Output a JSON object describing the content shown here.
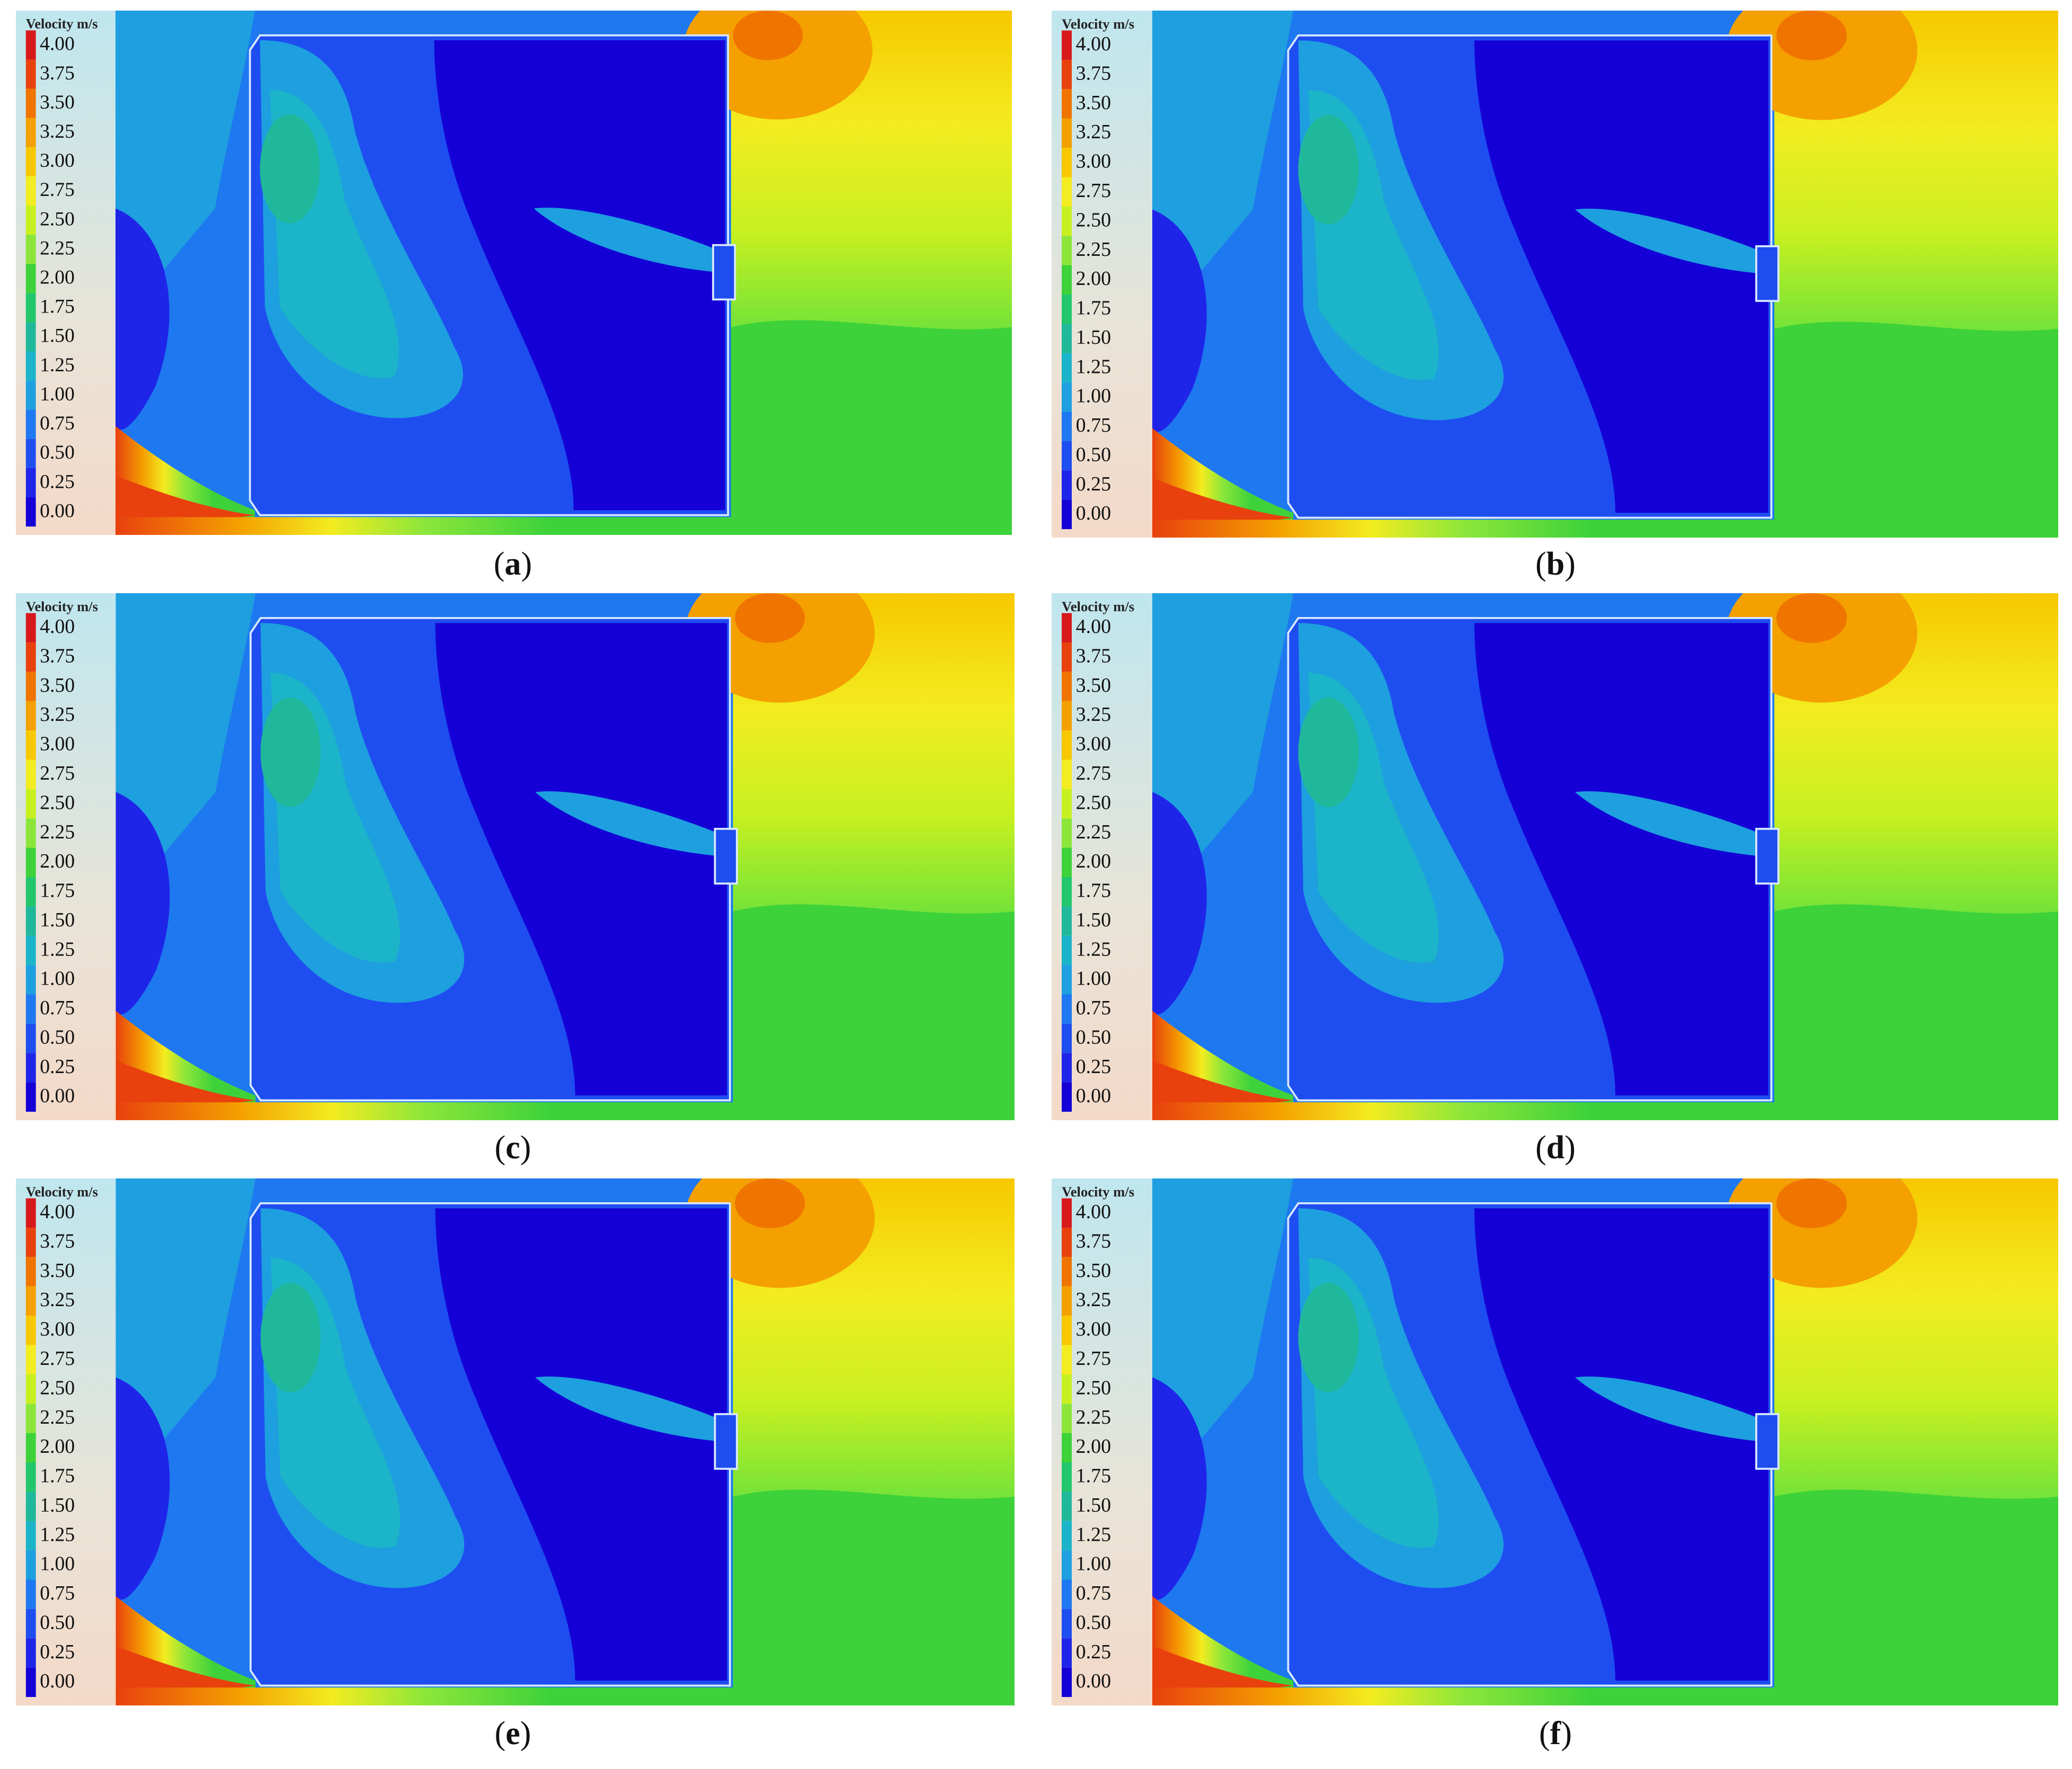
{
  "legend": {
    "title": "Velocity",
    "unit": "m/s",
    "ticks": [
      "4.00",
      "3.75",
      "3.50",
      "3.25",
      "3.00",
      "2.75",
      "2.50",
      "2.25",
      "2.00",
      "1.75",
      "1.50",
      "1.25",
      "1.00",
      "0.75",
      "0.50",
      "0.25",
      "0.00"
    ],
    "colors": [
      "#d7191c",
      "#e8410e",
      "#f07400",
      "#f4a000",
      "#f7c800",
      "#f3ec20",
      "#c8f020",
      "#8ce63a",
      "#3ed23a",
      "#22c76c",
      "#20b89a",
      "#1bb4c8",
      "#1e9fe0",
      "#1e78f0",
      "#1e4ef0",
      "#1e25e8",
      "#1400d6"
    ]
  },
  "panels": [
    {
      "label": "a"
    },
    {
      "label": "b"
    },
    {
      "label": "c"
    },
    {
      "label": "d"
    },
    {
      "label": "e"
    },
    {
      "label": "f"
    }
  ]
}
